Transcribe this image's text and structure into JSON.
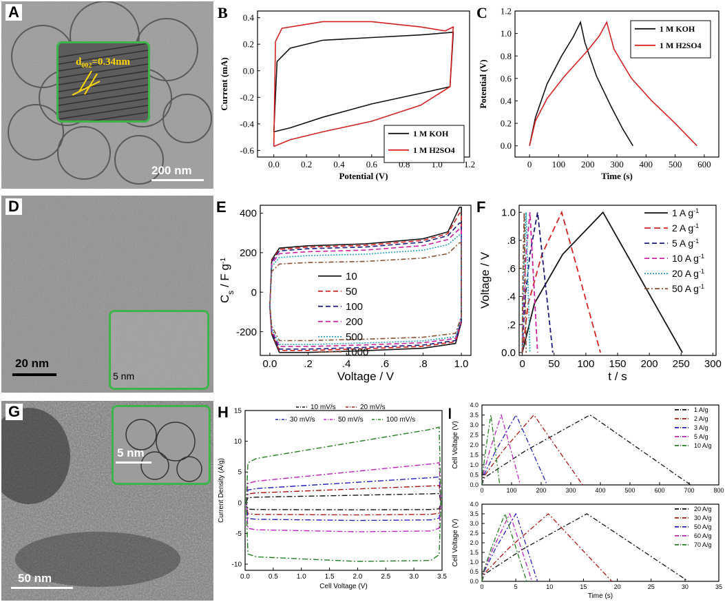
{
  "panels": {
    "A": {
      "letter": "A",
      "scale": "200 nm",
      "annotation": "d",
      "annotation_sub": "002",
      "annotation_rest": "=0.34nm"
    },
    "D": {
      "letter": "D",
      "scale": "20 nm",
      "inset_scale": "5 nm"
    },
    "G": {
      "letter": "G",
      "scale": "50 nm",
      "inset_scale": "5 nm"
    }
  },
  "colors": {
    "black": "#111111",
    "red": "#d62020",
    "dark_red": "#b01515",
    "navy": "#1a1a7a",
    "magenta": "#d020a0",
    "teal": "#20a0c0",
    "brown": "#8b5030",
    "green": "#208020",
    "blue": "#2020c0",
    "gray_tem": "#8f8f8f",
    "inset_border": "#3bb54a"
  },
  "chart_data": [
    {
      "id": "B",
      "letter": "B",
      "type": "line",
      "xlabel": "Potential (V)",
      "ylabel": "Current (mA)",
      "xlim": [
        -0.1,
        1.2
      ],
      "ylim": [
        -0.65,
        0.45
      ],
      "xticks": [
        "0.0",
        "0.2",
        "0.4",
        "0.6",
        "0.8",
        "1.0",
        "1.2"
      ],
      "yticks": [
        "-0.6",
        "-0.4",
        "-0.2",
        "0.0",
        "0.2",
        "0.4"
      ],
      "legend": {
        "position": "bottom-right",
        "entries": [
          "1 M KOH",
          "1 M H2SO4"
        ]
      },
      "series": [
        {
          "name": "1 M KOH",
          "color": "#111111",
          "points": [
            [
              0,
              -0.46
            ],
            [
              0.02,
              0.07
            ],
            [
              0.1,
              0.17
            ],
            [
              0.3,
              0.23
            ],
            [
              0.6,
              0.25
            ],
            [
              0.9,
              0.27
            ],
            [
              1.1,
              0.29
            ],
            [
              1.1,
              0.28
            ],
            [
              1.08,
              -0.12
            ],
            [
              0.9,
              -0.17
            ],
            [
              0.6,
              -0.25
            ],
            [
              0.3,
              -0.35
            ],
            [
              0.1,
              -0.43
            ],
            [
              0,
              -0.46
            ]
          ]
        },
        {
          "name": "1 M H2SO4",
          "color": "#d62020",
          "points": [
            [
              0,
              -0.57
            ],
            [
              0.01,
              0.22
            ],
            [
              0.05,
              0.32
            ],
            [
              0.3,
              0.37
            ],
            [
              0.6,
              0.37
            ],
            [
              0.9,
              0.33
            ],
            [
              1.05,
              0.3
            ],
            [
              1.1,
              0.33
            ],
            [
              1.1,
              0.33
            ],
            [
              1.08,
              -0.12
            ],
            [
              0.9,
              -0.26
            ],
            [
              0.6,
              -0.38
            ],
            [
              0.3,
              -0.46
            ],
            [
              0.1,
              -0.52
            ],
            [
              0,
              -0.57
            ]
          ]
        }
      ]
    },
    {
      "id": "C",
      "letter": "C",
      "type": "line",
      "xlabel": "Time (s)",
      "ylabel": "Potential (V)",
      "xlim": [
        -50,
        650
      ],
      "ylim": [
        -0.1,
        1.2
      ],
      "xticks": [
        "0",
        "100",
        "200",
        "300",
        "400",
        "500",
        "600"
      ],
      "yticks": [
        "0.0",
        "0.2",
        "0.4",
        "0.6",
        "0.8",
        "1.0",
        "1.2"
      ],
      "legend": {
        "position": "top-right",
        "entries": [
          "1 M KOH",
          "1 M H2SO4"
        ]
      },
      "series": [
        {
          "name": "1 M KOH",
          "color": "#111111",
          "points": [
            [
              0,
              0
            ],
            [
              20,
              0.25
            ],
            [
              60,
              0.55
            ],
            [
              110,
              0.8
            ],
            [
              150,
              0.97
            ],
            [
              175,
              1.1
            ],
            [
              190,
              0.92
            ],
            [
              230,
              0.62
            ],
            [
              280,
              0.35
            ],
            [
              320,
              0.15
            ],
            [
              355,
              0
            ]
          ]
        },
        {
          "name": "1 M H2SO4",
          "color": "#d62020",
          "points": [
            [
              0,
              0
            ],
            [
              20,
              0.22
            ],
            [
              60,
              0.42
            ],
            [
              120,
              0.62
            ],
            [
              200,
              0.85
            ],
            [
              240,
              0.98
            ],
            [
              265,
              1.1
            ],
            [
              290,
              0.86
            ],
            [
              350,
              0.6
            ],
            [
              420,
              0.4
            ],
            [
              500,
              0.2
            ],
            [
              575,
              0
            ]
          ]
        }
      ]
    },
    {
      "id": "E",
      "letter": "E",
      "type": "line",
      "xlabel": "Voltage / V",
      "ylabel": "C",
      "ylabel_sub": "s",
      "ylabel_rest": " / F g",
      "ylabel_sup": "-1",
      "xlim": [
        -0.05,
        1.05
      ],
      "ylim": [
        -320,
        440
      ],
      "xticks": [
        "0.0",
        ".2",
        ".4",
        ".6",
        ".8",
        "1.0"
      ],
      "yticks": [
        "-200",
        "0",
        "200",
        "400"
      ],
      "legend": {
        "position": "center",
        "entries": [
          "10",
          "50",
          "100",
          "200",
          "500",
          "1000"
        ]
      },
      "series": [
        {
          "name": "10",
          "color": "#111111",
          "top": 235,
          "bottom": -305,
          "endtop": 430
        },
        {
          "name": "50",
          "color": "#d62020",
          "top": 228,
          "bottom": -295,
          "endtop": 400
        },
        {
          "name": "100",
          "color": "#1a1a7a",
          "top": 220,
          "bottom": -288,
          "endtop": 350
        },
        {
          "name": "200",
          "color": "#d020a0",
          "top": 205,
          "bottom": -275,
          "endtop": 320
        },
        {
          "name": "500",
          "color": "#20a0c0",
          "top": 185,
          "bottom": -265,
          "endtop": 290
        },
        {
          "name": "1000",
          "color": "#8b5030",
          "top": 150,
          "bottom": -245,
          "endtop": 250
        }
      ]
    },
    {
      "id": "F",
      "letter": "F",
      "type": "line",
      "xlabel": "t / s",
      "ylabel": "Voltage / V",
      "xlim": [
        -5,
        305
      ],
      "ylim": [
        -0.02,
        1.05
      ],
      "xticks": [
        "0",
        "50",
        "100",
        "150",
        "200",
        "250",
        "300"
      ],
      "yticks": [
        "0.0",
        ".2",
        ".4",
        ".6",
        ".8",
        "1.0"
      ],
      "legend": {
        "position": "top-right",
        "entries": [
          "1 A g",
          "2 A g",
          "5 A g",
          "10 A g",
          "20 A g",
          "50 A g"
        ],
        "sup": "-1"
      },
      "series": [
        {
          "name": "1 A g-1",
          "color": "#111111",
          "dash": "",
          "charge": 127,
          "discharge": 252
        },
        {
          "name": "2 A g-1",
          "color": "#d62020",
          "dash": "9,5",
          "charge": 62,
          "discharge": 123
        },
        {
          "name": "5 A g-1",
          "color": "#1a1a7a",
          "dash": "7,4",
          "charge": 24,
          "discharge": 48
        },
        {
          "name": "10 A g-1",
          "color": "#d020a0",
          "dash": "7,4",
          "charge": 12,
          "discharge": 24
        },
        {
          "name": "20 A g-1",
          "color": "#20a0c0",
          "dash": "2,2",
          "charge": 6,
          "discharge": 12
        },
        {
          "name": "50 A g-1",
          "color": "#8b5030",
          "dash": "7,3,2,3",
          "charge": 3,
          "discharge": 6
        }
      ]
    },
    {
      "id": "H",
      "letter": "H",
      "type": "line",
      "xlabel": "Cell Voltage (V)",
      "ylabel": "Current Density (A/g)",
      "xlim": [
        0,
        3.5
      ],
      "ylim": [
        -11,
        15
      ],
      "xticks": [
        "0.0",
        "0.5",
        "1.0",
        "1.5",
        "2.0",
        "2.5",
        "3.0",
        "3.5"
      ],
      "yticks": [
        "-10",
        "-5",
        "0",
        "5",
        "10",
        "15"
      ],
      "legend": {
        "position": "top",
        "entries": [
          "10 mV/s",
          "20 mV/s",
          "30 mV/s",
          "50 mV/s",
          "100 mV/s"
        ]
      },
      "series": [
        {
          "name": "10 mV/s",
          "color": "#111111",
          "top0": 0.9,
          "top1": 1.5,
          "bot0": -1.1,
          "bot1": -1.1
        },
        {
          "name": "20 mV/s",
          "color": "#b01515",
          "top0": 1.6,
          "top1": 2.8,
          "bot0": -1.9,
          "bot1": -1.9
        },
        {
          "name": "30 mV/s",
          "color": "#2020c0",
          "top0": 2.3,
          "top1": 4.2,
          "bot0": -2.7,
          "bot1": -2.8
        },
        {
          "name": "50 mV/s",
          "color": "#c020c0",
          "top0": 3.5,
          "top1": 6.5,
          "bot0": -4.4,
          "bot1": -4.6
        },
        {
          "name": "100 mV/s",
          "color": "#208020",
          "top0": 7.2,
          "top1": 12.3,
          "bot0": -8.8,
          "bot1": -9.4
        }
      ]
    },
    {
      "id": "I1",
      "letter": "I",
      "type": "line",
      "xlabel": "",
      "ylabel": "Cell Voltage (V)",
      "xlim": [
        0,
        800
      ],
      "ylim": [
        0,
        4
      ],
      "xticks": [
        "0",
        "100",
        "200",
        "300",
        "400",
        "500",
        "600",
        "700",
        "800"
      ],
      "yticks": [
        "0.0",
        "0.5",
        "1.0",
        "1.5",
        "2.0",
        "2.5",
        "3.0",
        "3.5",
        "4.0"
      ],
      "legend": {
        "position": "top-right",
        "entries": [
          "1 A/g",
          "2 A/g",
          "3 A/g",
          "5 A/g",
          "10 A/g"
        ]
      },
      "series": [
        {
          "name": "1 A/g",
          "color": "#111111",
          "charge": 365,
          "discharge": 705
        },
        {
          "name": "2 A/g",
          "color": "#b01515",
          "charge": 175,
          "discharge": 340
        },
        {
          "name": "3 A/g",
          "color": "#2020c0",
          "charge": 115,
          "discharge": 220
        },
        {
          "name": "5 A/g",
          "color": "#c020c0",
          "charge": 65,
          "discharge": 130
        },
        {
          "name": "10 A/g",
          "color": "#208020",
          "charge": 30,
          "discharge": 60
        }
      ]
    },
    {
      "id": "I2",
      "letter": "",
      "type": "line",
      "xlabel": "Time (s)",
      "ylabel": "Cell Voltage (V)",
      "xlim": [
        0,
        35
      ],
      "ylim": [
        0,
        4
      ],
      "xticks": [
        "0",
        "5",
        "10",
        "15",
        "20",
        "25",
        "30",
        "35"
      ],
      "yticks": [
        "0.0",
        "0.5",
        "1.0",
        "1.5",
        "2.0",
        "2.5",
        "3.0",
        "3.5",
        "4.0"
      ],
      "legend": {
        "position": "top-right",
        "entries": [
          "20 A/g",
          "30 A/g",
          "50 A/g",
          "60 A/g",
          "70 A/g"
        ]
      },
      "series": [
        {
          "name": "20 A/g",
          "color": "#111111",
          "charge": 15.5,
          "discharge": 30.5
        },
        {
          "name": "30 A/g",
          "color": "#b01515",
          "charge": 9.8,
          "discharge": 19.2
        },
        {
          "name": "50 A/g",
          "color": "#2020c0",
          "charge": 5.0,
          "discharge": 8.2
        },
        {
          "name": "60 A/g",
          "color": "#c020c0",
          "charge": 4.1,
          "discharge": 7.4
        },
        {
          "name": "70 A/g",
          "color": "#208020",
          "charge": 3.4,
          "discharge": 6.6
        }
      ]
    }
  ]
}
